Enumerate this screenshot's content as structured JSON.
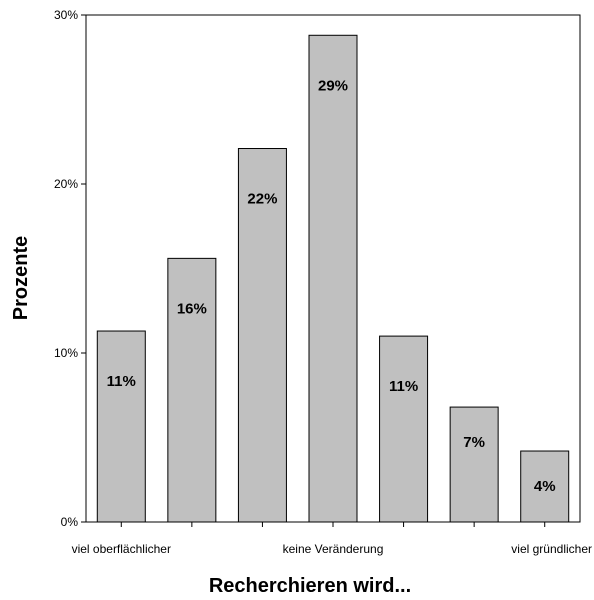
{
  "chart_data": {
    "type": "bar",
    "xlabel": "Recherchieren wird...",
    "ylabel": "Prozente",
    "ylim": [
      0,
      30
    ],
    "y_ticks": [
      0,
      10,
      20,
      30
    ],
    "y_tick_labels": [
      "0%",
      "10%",
      "20%",
      "30%"
    ],
    "categories": [
      "viel oberflächlicher",
      "",
      "",
      "keine Veränderung",
      "",
      "",
      "viel gründlicher"
    ],
    "values": [
      11.3,
      15.6,
      22.1,
      28.8,
      11.0,
      6.8,
      4.2
    ],
    "data_labels": [
      "11%",
      "16%",
      "22%",
      "29%",
      "11%",
      "7%",
      "4%"
    ],
    "grid": false,
    "legend": "none",
    "colors": {
      "bar_fill": "#c0c0c0",
      "bar_stroke": "#000000",
      "axis": "#000000"
    }
  }
}
